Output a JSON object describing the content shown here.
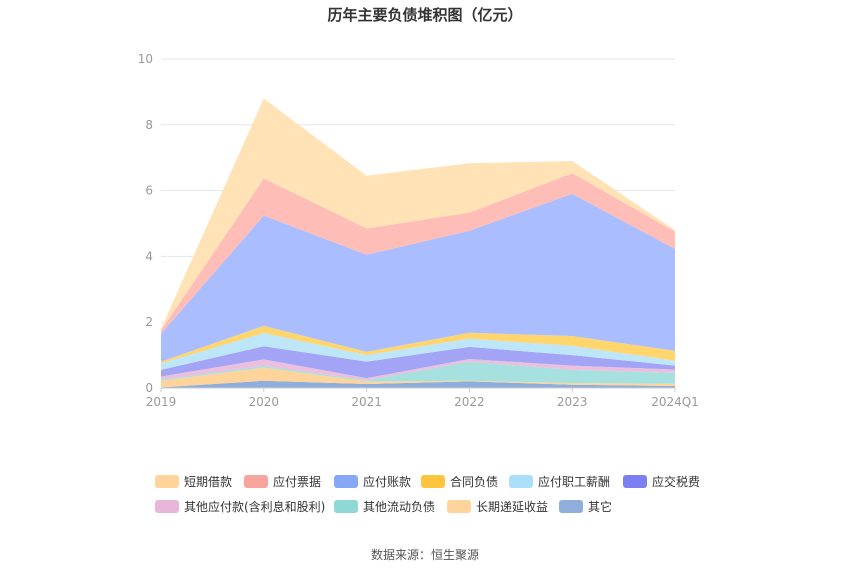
{
  "chart_data": {
    "type": "area",
    "stacked": true,
    "title": "历年主要负债堆积图（亿元）",
    "x": [
      "2019",
      "2020",
      "2021",
      "2022",
      "2023",
      "2024Q1"
    ],
    "ylim": [
      0,
      10
    ],
    "yticks": [
      0,
      2,
      4,
      6,
      8,
      10
    ],
    "grid": true,
    "legend_position": "bottom",
    "series": [
      {
        "name": "其它",
        "color": "#8FAEDB",
        "values": [
          0.02,
          0.22,
          0.12,
          0.2,
          0.1,
          0.06
        ]
      },
      {
        "name": "长期递延收益",
        "color": "#FFD49A",
        "values": [
          0.2,
          0.4,
          0.08,
          0.02,
          0.05,
          0.07
        ]
      },
      {
        "name": "其他流动负债",
        "color": "#A6E0DF",
        "values": [
          0.03,
          0.05,
          0.03,
          0.58,
          0.4,
          0.33
        ]
      },
      {
        "name": "其他应付款(含利息和股利)",
        "color": "#EBC0DF",
        "values": [
          0.1,
          0.2,
          0.07,
          0.08,
          0.13,
          0.1
        ]
      },
      {
        "name": "应交税费",
        "color": "#A3A4F5",
        "values": [
          0.2,
          0.4,
          0.5,
          0.37,
          0.32,
          0.12
        ]
      },
      {
        "name": "应付职工薪酬",
        "color": "#BDE6F9",
        "values": [
          0.2,
          0.4,
          0.2,
          0.25,
          0.28,
          0.15
        ]
      },
      {
        "name": "合同负债",
        "color": "#FFD66E",
        "values": [
          0.05,
          0.22,
          0.1,
          0.18,
          0.3,
          0.3
        ]
      },
      {
        "name": "应付账款",
        "color": "#A9BDFF",
        "values": [
          0.85,
          3.35,
          2.95,
          3.1,
          4.32,
          3.1
        ]
      },
      {
        "name": "应付票据",
        "color": "#FFBDB8",
        "values": [
          0.1,
          1.13,
          0.8,
          0.55,
          0.63,
          0.52
        ]
      },
      {
        "name": "短期借款",
        "color": "#FFE3B6",
        "values": [
          0.05,
          2.43,
          1.6,
          1.5,
          0.37,
          0.05
        ]
      }
    ],
    "legend_order": [
      "短期借款",
      "应付票据",
      "应付账款",
      "合同负债",
      "应付职工薪酬",
      "应交税费",
      "其他应付款(含利息和股利)",
      "其他流动负债",
      "长期递延收益",
      "其它"
    ],
    "legend_colors": {
      "短期借款": "#FFD49A",
      "应付票据": "#F9A59D",
      "应付账款": "#87A7F7",
      "合同负债": "#FFC53D",
      "应付职工薪酬": "#A9DFFA",
      "应交税费": "#7B7FF1",
      "其他应付款(含利息和股利)": "#E8B6D9",
      "其他流动负债": "#8ED9D5",
      "长期递延收益": "#FFD49A",
      "其它": "#8FAEDB"
    }
  },
  "source_text": "数据来源：恒生聚源"
}
